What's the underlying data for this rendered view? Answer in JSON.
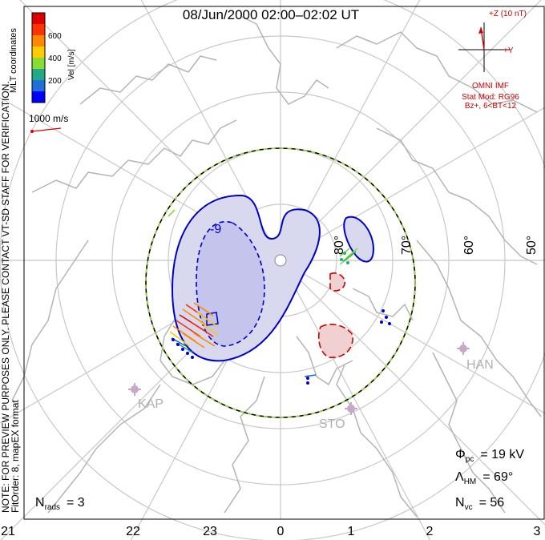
{
  "title": "08/Jun/2000 02:00–02:02 UT",
  "colorbar": {
    "label": "Vel [m/s]",
    "ticks": [
      "600",
      "400",
      "200"
    ],
    "colors": [
      "#0000ff",
      "#1e6fd8",
      "#22aa88",
      "#88dd33",
      "#ffcc00",
      "#ff8800",
      "#ff3300",
      "#dd0000"
    ]
  },
  "coordinates_label": "MLT coordinates",
  "scale_label": "1000 m/s",
  "preview_note": "NOTE: FOR PREVIEW PURPOSES ONLY. PLEASE CONTACT VT-SD STAFF FOR VERIFICATION.",
  "fit_order": "FitOrder: 8, mapEX format",
  "imf": {
    "z_label": "+Z (10 nT)",
    "y_label": "+Y",
    "source": "OMNI IMF",
    "stat_model": "Stat Mod: RG96",
    "conditions": "Bz+, 6<BT<12"
  },
  "latitude_labels": [
    "80°",
    "70°",
    "60°",
    "50°"
  ],
  "stations": [
    "KAP",
    "STO",
    "HAN"
  ],
  "contour_label": "-9",
  "stats": {
    "phi_symbol": "Φ",
    "phi_sub": "pc",
    "phi_value": "= 19 kV",
    "lambda_symbol": "Λ",
    "lambda_sub": "HM",
    "lambda_value": "= 69°",
    "nvc_symbol": "N",
    "nvc_sub": "vc",
    "nvc_value": "= 56",
    "nrads_symbol": "N",
    "nrads_sub": "rads",
    "nrads_value": "= 3"
  },
  "mlt_ticks": [
    "21",
    "22",
    "23",
    "0",
    "1",
    "2",
    "3"
  ],
  "colors": {
    "grid": "#c8c8c8",
    "land": "#b4b4b4",
    "positive_contour": "#0000cc",
    "negative_contour": "#cc0000",
    "positive_fill": "#d8d8ee",
    "negative_fill": "#f0d0d0",
    "station": "#c8a8c8",
    "imf_text": "#cc0000"
  }
}
